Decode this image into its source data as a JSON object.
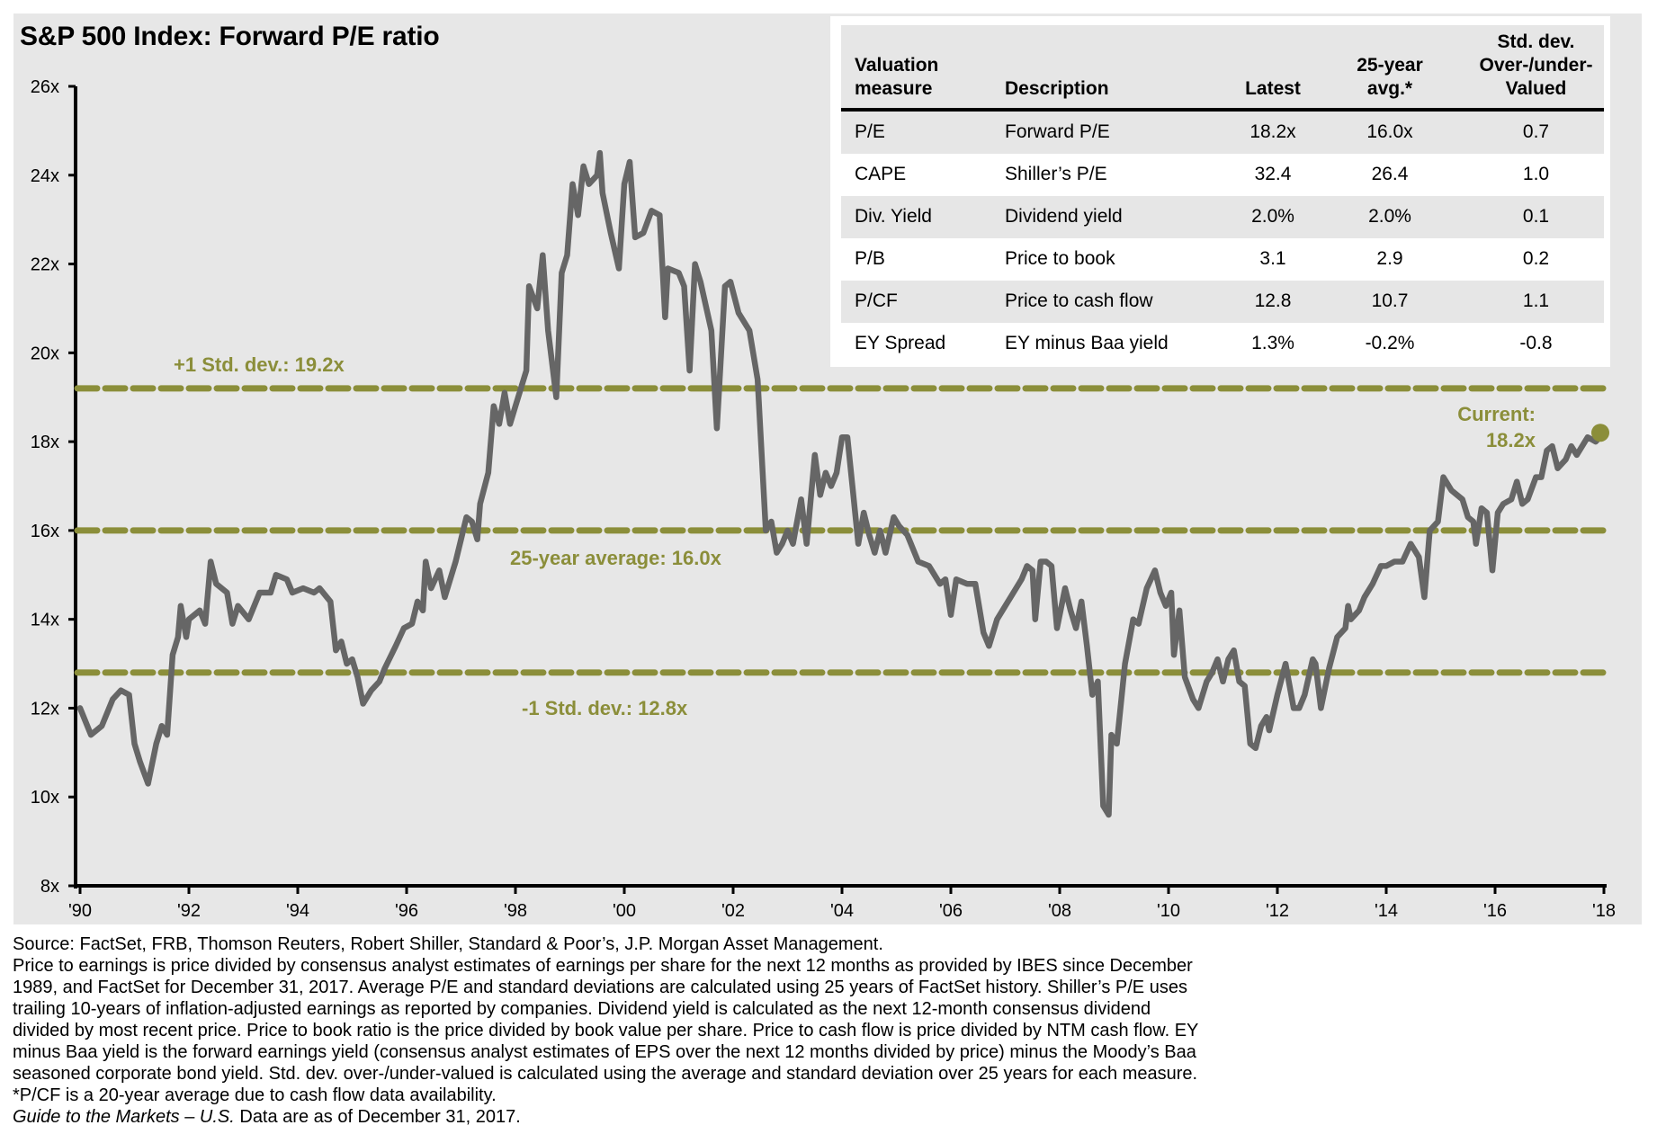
{
  "title": "S&P 500 Index: Forward P/E ratio",
  "colors": {
    "panel_bg": "#e7e7e7",
    "line": "#666666",
    "olive": "#8b8e3a",
    "table_shade": "#e6e6e6"
  },
  "chart_data": {
    "type": "line",
    "title": "S&P 500 Index: Forward P/E ratio",
    "xlabel": "",
    "ylabel": "",
    "xlim": [
      1990,
      2018
    ],
    "ylim": [
      8,
      26
    ],
    "grid": false,
    "x_ticks": [
      {
        "value": 1990,
        "label": "'90"
      },
      {
        "value": 1992,
        "label": "'92"
      },
      {
        "value": 1994,
        "label": "'94"
      },
      {
        "value": 1996,
        "label": "'96"
      },
      {
        "value": 1998,
        "label": "'98"
      },
      {
        "value": 2000,
        "label": "'00"
      },
      {
        "value": 2002,
        "label": "'02"
      },
      {
        "value": 2004,
        "label": "'04"
      },
      {
        "value": 2006,
        "label": "'06"
      },
      {
        "value": 2008,
        "label": "'08"
      },
      {
        "value": 2010,
        "label": "'10"
      },
      {
        "value": 2012,
        "label": "'12"
      },
      {
        "value": 2014,
        "label": "'14"
      },
      {
        "value": 2016,
        "label": "'16"
      },
      {
        "value": 2018,
        "label": "'18"
      }
    ],
    "y_ticks": [
      {
        "value": 26,
        "label": "26x"
      },
      {
        "value": 24,
        "label": "24x"
      },
      {
        "value": 22,
        "label": "22x"
      },
      {
        "value": 20,
        "label": "20x"
      },
      {
        "value": 18,
        "label": "18x"
      },
      {
        "value": 16,
        "label": "16x"
      },
      {
        "value": 14,
        "label": "14x"
      },
      {
        "value": 12,
        "label": "12x"
      },
      {
        "value": 10,
        "label": "10x"
      },
      {
        "value": 8,
        "label": "8x"
      }
    ],
    "reference_lines": [
      {
        "name": "plus-1-std-dev",
        "value": 19.2,
        "label": "+1 Std. dev.: 19.2x"
      },
      {
        "name": "25-year-average",
        "value": 16.0,
        "label": "25-year average: 16.0x"
      },
      {
        "name": "minus-1-std-dev",
        "value": 12.8,
        "label": "-1 Std. dev.: 12.8x"
      }
    ],
    "current": {
      "x": 2018.0,
      "value": 18.2,
      "label_line1": "Current:",
      "label_line2": "18.2x"
    },
    "series": [
      {
        "name": "Forward P/E",
        "x": [
          1990.0,
          1990.2,
          1990.4,
          1990.6,
          1990.75,
          1990.9,
          1991.0,
          1991.1,
          1991.25,
          1991.4,
          1991.5,
          1991.6,
          1991.7,
          1991.8,
          1991.85,
          1991.95,
          1992.0,
          1992.2,
          1992.3,
          1992.4,
          1992.5,
          1992.7,
          1992.8,
          1992.9,
          1993.1,
          1993.3,
          1993.5,
          1993.6,
          1993.8,
          1993.9,
          1994.1,
          1994.3,
          1994.4,
          1994.6,
          1994.7,
          1994.8,
          1994.9,
          1995.0,
          1995.1,
          1995.2,
          1995.35,
          1995.5,
          1995.6,
          1995.8,
          1995.95,
          1996.1,
          1996.2,
          1996.3,
          1996.35,
          1996.45,
          1996.6,
          1996.7,
          1996.9,
          1997.0,
          1997.1,
          1997.2,
          1997.3,
          1997.35,
          1997.5,
          1997.6,
          1997.7,
          1997.8,
          1997.9,
          1998.0,
          1998.2,
          1998.25,
          1998.4,
          1998.5,
          1998.6,
          1998.75,
          1998.85,
          1998.95,
          1999.05,
          1999.15,
          1999.25,
          1999.35,
          1999.5,
          1999.55,
          1999.6,
          1999.75,
          1999.9,
          2000.0,
          2000.1,
          2000.2,
          2000.35,
          2000.5,
          2000.65,
          2000.75,
          2000.8,
          2001.0,
          2001.1,
          2001.2,
          2001.3,
          2001.4,
          2001.6,
          2001.7,
          2001.85,
          2001.95,
          2002.1,
          2002.3,
          2002.45,
          2002.6,
          2002.7,
          2002.8,
          2002.9,
          2003.0,
          2003.1,
          2003.25,
          2003.35,
          2003.5,
          2003.6,
          2003.7,
          2003.8,
          2003.9,
          2004.0,
          2004.1,
          2004.2,
          2004.3,
          2004.4,
          2004.5,
          2004.6,
          2004.7,
          2004.8,
          2004.95,
          2005.05,
          2005.2,
          2005.4,
          2005.6,
          2005.8,
          2005.9,
          2006.0,
          2006.1,
          2006.3,
          2006.45,
          2006.6,
          2006.7,
          2006.85,
          2007.0,
          2007.2,
          2007.3,
          2007.4,
          2007.5,
          2007.55,
          2007.65,
          2007.75,
          2007.85,
          2007.95,
          2008.1,
          2008.2,
          2008.3,
          2008.4,
          2008.5,
          2008.6,
          2008.7,
          2008.8,
          2008.9,
          2008.95,
          2009.05,
          2009.2,
          2009.35,
          2009.45,
          2009.6,
          2009.75,
          2009.85,
          2009.95,
          2010.05,
          2010.1,
          2010.2,
          2010.3,
          2010.45,
          2010.55,
          2010.7,
          2010.8,
          2010.9,
          2011.0,
          2011.1,
          2011.2,
          2011.3,
          2011.4,
          2011.5,
          2011.6,
          2011.7,
          2011.8,
          2011.85,
          2012.0,
          2012.15,
          2012.3,
          2012.4,
          2012.5,
          2012.65,
          2012.7,
          2012.8,
          2012.95,
          2013.1,
          2013.25,
          2013.3,
          2013.35,
          2013.5,
          2013.6,
          2013.75,
          2013.9,
          2014.0,
          2014.15,
          2014.3,
          2014.45,
          2014.6,
          2014.7,
          2014.8,
          2014.95,
          2015.05,
          2015.2,
          2015.4,
          2015.5,
          2015.6,
          2015.65,
          2015.75,
          2015.85,
          2015.95,
          2016.05,
          2016.15,
          2016.3,
          2016.4,
          2016.5,
          2016.6,
          2016.75,
          2016.85,
          2016.95,
          2017.05,
          2017.15,
          2017.3,
          2017.4,
          2017.5,
          2017.7,
          2017.85,
          2018.0
        ],
        "values": [
          12.0,
          11.4,
          11.6,
          12.2,
          12.4,
          12.3,
          11.2,
          10.8,
          10.3,
          11.2,
          11.6,
          11.4,
          13.2,
          13.6,
          14.3,
          13.6,
          14.0,
          14.2,
          13.9,
          15.3,
          14.8,
          14.6,
          13.9,
          14.3,
          14.0,
          14.6,
          14.6,
          15.0,
          14.9,
          14.6,
          14.7,
          14.6,
          14.7,
          14.4,
          13.3,
          13.5,
          13.0,
          13.1,
          12.7,
          12.1,
          12.4,
          12.6,
          12.9,
          13.4,
          13.8,
          13.9,
          14.4,
          14.2,
          15.3,
          14.7,
          15.1,
          14.5,
          15.3,
          15.8,
          16.3,
          16.2,
          15.8,
          16.6,
          17.3,
          18.8,
          18.4,
          19.1,
          18.4,
          18.8,
          19.6,
          21.5,
          21.0,
          22.2,
          20.5,
          19.0,
          21.8,
          22.2,
          23.8,
          23.1,
          24.2,
          23.8,
          24.0,
          24.5,
          23.6,
          22.7,
          21.9,
          23.8,
          24.3,
          22.6,
          22.7,
          23.2,
          23.1,
          20.8,
          21.9,
          21.8,
          21.5,
          19.6,
          22.0,
          21.6,
          20.5,
          18.3,
          21.5,
          21.6,
          20.9,
          20.5,
          19.4,
          16.0,
          16.2,
          15.5,
          15.7,
          16.0,
          15.7,
          16.7,
          15.7,
          17.7,
          16.8,
          17.3,
          17.0,
          17.3,
          18.1,
          18.1,
          16.9,
          15.7,
          16.4,
          15.9,
          15.5,
          16.0,
          15.5,
          16.3,
          16.1,
          15.9,
          15.3,
          15.2,
          14.8,
          14.9,
          14.1,
          14.9,
          14.8,
          14.8,
          13.7,
          13.4,
          14.0,
          14.3,
          14.7,
          14.9,
          15.2,
          15.1,
          14.0,
          15.3,
          15.3,
          15.2,
          13.8,
          14.7,
          14.2,
          13.8,
          14.4,
          13.4,
          12.3,
          12.6,
          9.8,
          9.6,
          11.4,
          11.2,
          13.0,
          14.0,
          13.9,
          14.7,
          15.1,
          14.6,
          14.3,
          14.6,
          13.2,
          14.2,
          12.7,
          12.2,
          12.0,
          12.6,
          12.8,
          13.1,
          12.6,
          13.1,
          13.3,
          12.6,
          12.5,
          11.2,
          11.1,
          11.6,
          11.8,
          11.5,
          12.3,
          13.0,
          12.0,
          12.0,
          12.3,
          13.1,
          13.0,
          12.0,
          12.9,
          13.6,
          13.8,
          14.3,
          14.0,
          14.2,
          14.5,
          14.8,
          15.2,
          15.2,
          15.3,
          15.3,
          15.7,
          15.4,
          14.5,
          16.0,
          16.2,
          17.2,
          16.9,
          16.7,
          16.3,
          16.2,
          15.7,
          16.5,
          16.4,
          15.1,
          16.4,
          16.6,
          16.7,
          17.1,
          16.6,
          16.7,
          17.2,
          17.2,
          17.8,
          17.9,
          17.4,
          17.6,
          17.9,
          17.7,
          18.1,
          18.0,
          18.2
        ]
      }
    ]
  },
  "table": {
    "headers": [
      {
        "lines": [
          "Valuation",
          "measure"
        ]
      },
      {
        "lines": [
          "Description"
        ]
      },
      {
        "lines": [
          "Latest"
        ]
      },
      {
        "lines": [
          "25-year",
          "avg.*"
        ]
      },
      {
        "lines": [
          "Std. dev.",
          "Over-/under-",
          "Valued"
        ]
      }
    ],
    "rows": [
      {
        "measure": "P/E",
        "description": "Forward P/E",
        "latest": "18.2x",
        "avg": "16.0x",
        "std_dev": "0.7"
      },
      {
        "measure": "CAPE",
        "description": "Shiller’s P/E",
        "latest": "32.4",
        "avg": "26.4",
        "std_dev": "1.0"
      },
      {
        "measure": "Div. Yield",
        "description": "Dividend yield",
        "latest": "2.0%",
        "avg": "2.0%",
        "std_dev": "0.1"
      },
      {
        "measure": "P/B",
        "description": "Price to book",
        "latest": "3.1",
        "avg": "2.9",
        "std_dev": "0.2"
      },
      {
        "measure": "P/CF",
        "description": "Price to cash flow",
        "latest": "12.8",
        "avg": "10.7",
        "std_dev": "1.1"
      },
      {
        "measure": "EY Spread",
        "description": "EY minus Baa yield",
        "latest": "1.3%",
        "avg": "-0.2%",
        "std_dev": "-0.8"
      }
    ]
  },
  "footnotes": {
    "lines": [
      "Source: FactSet, FRB, Thomson Reuters, Robert Shiller, Standard & Poor’s, J.P. Morgan Asset Management.",
      "Price to earnings is price divided by consensus analyst estimates of earnings per share for the next 12 months as provided by IBES since December",
      "1989, and FactSet for December 31, 2017. Average P/E and standard deviations are calculated using 25 years of FactSet history. Shiller’s P/E uses",
      "trailing 10-years of inflation-adjusted earnings as reported by companies. Dividend yield is calculated as the next 12-month consensus dividend",
      "divided by most recent price. Price to book ratio is the price divided by book value per share. Price to cash flow is price divided by NTM cash flow. EY",
      "minus Baa yield is the forward earnings yield (consensus analyst estimates of EPS over the next 12 months divided by price) minus the Moody’s Baa",
      "seasoned corporate bond yield. Std. dev. over-/under-valued is calculated using the average and standard deviation over 25 years for each measure.",
      "*P/CF is a 20-year average due to cash flow data availability."
    ],
    "last_line_italic_1": "Guide to the Markets",
    "last_line_dash": " – ",
    "last_line_italic_2": "U.S.",
    "last_line_rest": " Data are as of December 31, 2017."
  }
}
